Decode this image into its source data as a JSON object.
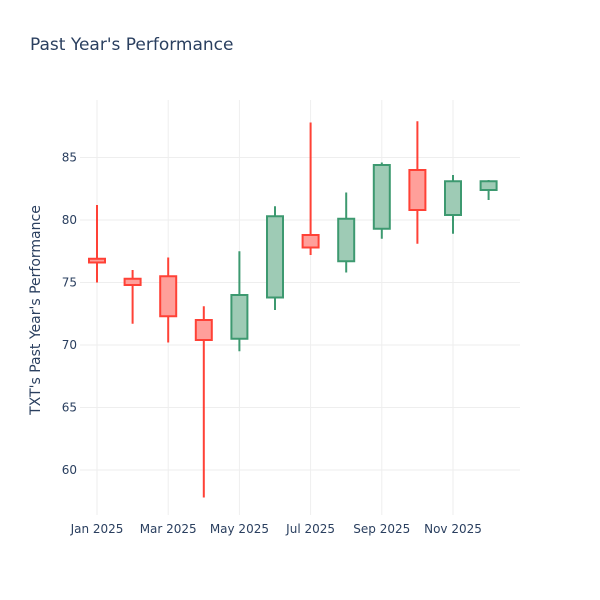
{
  "chart_data": {
    "type": "candlestick",
    "title": "Past Year's Performance",
    "xlabel": "",
    "ylabel": "TXT's Past Year's Performance",
    "ylim": [
      56,
      90
    ],
    "y_ticks": [
      60,
      65,
      70,
      75,
      80,
      85
    ],
    "x_ticks": [
      {
        "label": "Jan 2025",
        "month_index": 0
      },
      {
        "label": "Mar 2025",
        "month_index": 2
      },
      {
        "label": "May 2025",
        "month_index": 4
      },
      {
        "label": "Jul 2025",
        "month_index": 6
      },
      {
        "label": "Sep 2025",
        "month_index": 8
      },
      {
        "label": "Nov 2025",
        "month_index": 10
      }
    ],
    "increasing_color": "#3d9970",
    "increasing_fill": "#9ecbb5",
    "decreasing_color": "#ff4136",
    "decreasing_fill": "#ff9f9a",
    "series": [
      {
        "month": "Jan 2025",
        "open": 76.9,
        "high": 81.2,
        "low": 75.0,
        "close": 76.6
      },
      {
        "month": "Feb 2025",
        "open": 75.3,
        "high": 76.0,
        "low": 71.7,
        "close": 74.8
      },
      {
        "month": "Mar 2025",
        "open": 75.5,
        "high": 77.0,
        "low": 70.2,
        "close": 72.3
      },
      {
        "month": "Apr 2025",
        "open": 72.0,
        "high": 73.1,
        "low": 57.8,
        "close": 70.4
      },
      {
        "month": "May 2025",
        "open": 70.5,
        "high": 77.5,
        "low": 69.5,
        "close": 74.0
      },
      {
        "month": "Jun 2025",
        "open": 73.8,
        "high": 81.1,
        "low": 72.8,
        "close": 80.3
      },
      {
        "month": "Jul 2025",
        "open": 78.8,
        "high": 87.8,
        "low": 77.2,
        "close": 77.8
      },
      {
        "month": "Aug 2025",
        "open": 76.7,
        "high": 82.2,
        "low": 75.8,
        "close": 80.1
      },
      {
        "month": "Sep 2025",
        "open": 79.3,
        "high": 84.6,
        "low": 78.5,
        "close": 84.4
      },
      {
        "month": "Oct 2025",
        "open": 84.0,
        "high": 87.9,
        "low": 78.1,
        "close": 80.8
      },
      {
        "month": "Nov 2025",
        "open": 80.4,
        "high": 83.6,
        "low": 78.9,
        "close": 83.1
      },
      {
        "month": "Dec 2025",
        "open": 82.4,
        "high": 83.2,
        "low": 81.6,
        "close": 83.1
      }
    ]
  }
}
